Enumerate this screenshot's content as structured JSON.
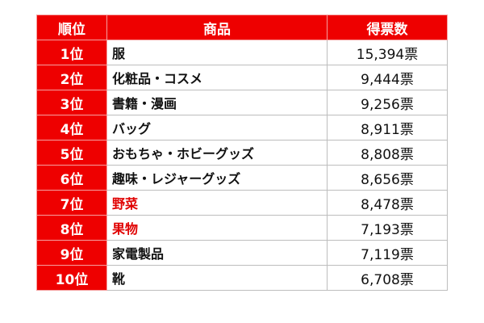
{
  "table": {
    "headers": {
      "rank": "順位",
      "item": "商品",
      "votes": "得票数"
    },
    "accent_color": "#ee0000",
    "highlight_text_color": "#e00000",
    "rows": [
      {
        "rank": "1位",
        "item": "服",
        "votes": "15,394票",
        "highlight": false
      },
      {
        "rank": "2位",
        "item": "化粧品・コスメ",
        "votes": "9,444票",
        "highlight": false
      },
      {
        "rank": "3位",
        "item": "書籍・漫画",
        "votes": "9,256票",
        "highlight": false
      },
      {
        "rank": "4位",
        "item": "バッグ",
        "votes": "8,911票",
        "highlight": false
      },
      {
        "rank": "5位",
        "item": "おもちゃ・ホビーグッズ",
        "votes": "8,808票",
        "highlight": false
      },
      {
        "rank": "6位",
        "item": "趣味・レジャーグッズ",
        "votes": "8,656票",
        "highlight": false
      },
      {
        "rank": "7位",
        "item": "野菜",
        "votes": "8,478票",
        "highlight": true
      },
      {
        "rank": "8位",
        "item": "果物",
        "votes": "7,193票",
        "highlight": true
      },
      {
        "rank": "9位",
        "item": "家電製品",
        "votes": "7,119票",
        "highlight": false
      },
      {
        "rank": "10位",
        "item": "靴",
        "votes": "6,708票",
        "highlight": false
      }
    ]
  }
}
